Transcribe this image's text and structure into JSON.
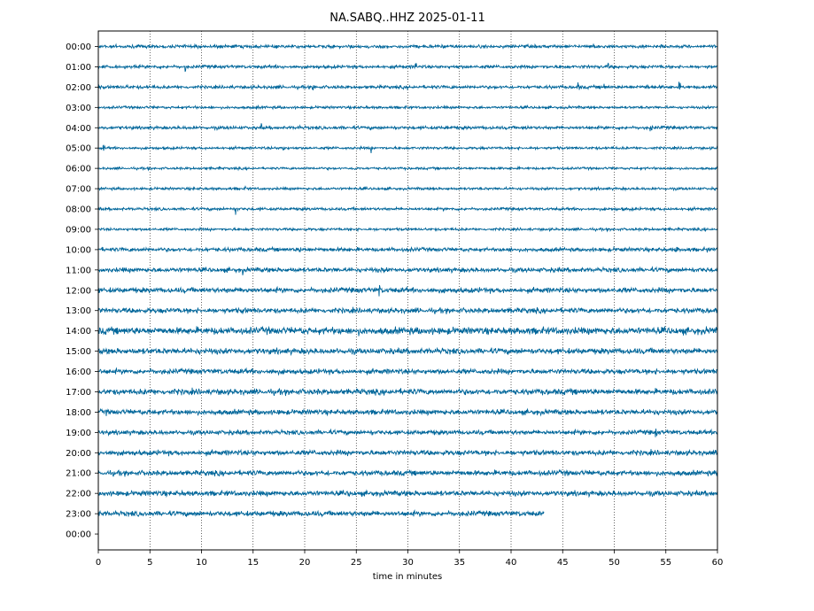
{
  "chart_data": {
    "type": "line",
    "title": "NA.SABQ..HHZ 2025-01-11",
    "xlabel": "time in minutes",
    "ylabel": "",
    "xlim": [
      0,
      60
    ],
    "x_ticks": [
      "0",
      "5",
      "10",
      "15",
      "20",
      "25",
      "30",
      "35",
      "40",
      "45",
      "50",
      "55",
      "60"
    ],
    "y_tick_labels": [
      "00:00",
      "01:00",
      "02:00",
      "03:00",
      "04:00",
      "05:00",
      "06:00",
      "07:00",
      "08:00",
      "09:00",
      "10:00",
      "11:00",
      "12:00",
      "13:00",
      "14:00",
      "15:00",
      "16:00",
      "17:00",
      "18:00",
      "19:00",
      "20:00",
      "21:00",
      "22:00",
      "23:00",
      "00:00"
    ],
    "trace_color": "#00669a",
    "grid": "vertical dotted at each x tick",
    "series": [
      {
        "hour": "00:00",
        "noise_level": 0.25,
        "end_minute": 60,
        "events": [
          [
            0.5,
            0.6
          ],
          [
            3.2,
            0.4
          ],
          [
            13,
            0.5
          ],
          [
            20.5,
            0.35
          ],
          [
            48,
            1.2
          ],
          [
            54.5,
            0.8
          ],
          [
            59.8,
            0.4
          ]
        ]
      },
      {
        "hour": "01:00",
        "noise_level": 0.25,
        "end_minute": 60,
        "events": [
          [
            5.5,
            0.5
          ],
          [
            8.4,
            1.0
          ],
          [
            30.7,
            1.3
          ],
          [
            34.7,
            0.5
          ],
          [
            49.4,
            0.7
          ],
          [
            54.5,
            0.5
          ]
        ]
      },
      {
        "hour": "02:00",
        "noise_level": 0.25,
        "end_minute": 60,
        "events": [
          [
            2.7,
            0.8
          ],
          [
            8.8,
            0.7
          ],
          [
            12.8,
            0.4
          ],
          [
            20.8,
            1.4
          ],
          [
            46.5,
            1.0
          ],
          [
            49,
            1.1
          ],
          [
            53.2,
            1.0
          ],
          [
            56.3,
            1.1
          ]
        ]
      },
      {
        "hour": "03:00",
        "noise_level": 0.2,
        "end_minute": 60,
        "events": [
          [
            15.3,
            0.5
          ],
          [
            26,
            0.4
          ]
        ]
      },
      {
        "hour": "04:00",
        "noise_level": 0.25,
        "end_minute": 60,
        "events": [
          [
            0.5,
            0.5
          ],
          [
            15.8,
            0.7
          ],
          [
            19.4,
            0.8
          ],
          [
            25,
            0.4
          ],
          [
            33.8,
            0.7
          ],
          [
            41.5,
            1.0
          ],
          [
            53.5,
            1.1
          ]
        ]
      },
      {
        "hour": "05:00",
        "noise_level": 0.2,
        "end_minute": 60,
        "events": [
          [
            0.5,
            0.8
          ],
          [
            17.9,
            1.2
          ],
          [
            26.4,
            0.8
          ],
          [
            37,
            0.4
          ]
        ]
      },
      {
        "hour": "06:00",
        "noise_level": 0.18,
        "end_minute": 60,
        "events": [
          [
            11.6,
            0.6
          ],
          [
            24.8,
            1.3
          ]
        ]
      },
      {
        "hour": "07:00",
        "noise_level": 0.2,
        "end_minute": 60,
        "events": [
          [
            14.3,
            0.8
          ],
          [
            55,
            0.3
          ]
        ]
      },
      {
        "hour": "08:00",
        "noise_level": 0.22,
        "end_minute": 60,
        "events": [
          [
            13.3,
            1.4
          ]
        ]
      },
      {
        "hour": "09:00",
        "noise_level": 0.2,
        "end_minute": 60,
        "events": [
          [
            13,
            0.3
          ]
        ]
      },
      {
        "hour": "10:00",
        "noise_level": 0.3,
        "end_minute": 60,
        "events": [
          [
            19.5,
            1.0
          ],
          [
            23.8,
            0.8
          ],
          [
            40,
            0.5
          ],
          [
            56,
            1.1
          ],
          [
            59,
            0.6
          ]
        ]
      },
      {
        "hour": "11:00",
        "noise_level": 0.35,
        "end_minute": 60,
        "events": [
          [
            9,
            0.6
          ],
          [
            14,
            0.8
          ],
          [
            27.5,
            1.3
          ],
          [
            44.5,
            0.7
          ],
          [
            47,
            0.8
          ],
          [
            59,
            0.8
          ]
        ]
      },
      {
        "hour": "12:00",
        "noise_level": 0.4,
        "end_minute": 60,
        "events": [
          [
            6.3,
            0.7
          ],
          [
            14,
            1.2
          ],
          [
            27.2,
            1.5
          ],
          [
            33.5,
            0.6
          ],
          [
            52.5,
            0.6
          ]
        ]
      },
      {
        "hour": "13:00",
        "noise_level": 0.4,
        "end_minute": 60,
        "events": [
          [
            14,
            1.0
          ],
          [
            40,
            1.0
          ],
          [
            42.5,
            0.6
          ],
          [
            56.8,
            0.5
          ]
        ]
      },
      {
        "hour": "14:00",
        "noise_level": 0.55,
        "end_minute": 60,
        "events": [
          [
            25.2,
            0.8
          ],
          [
            31,
            0.5
          ],
          [
            55,
            0.6
          ]
        ]
      },
      {
        "hour": "15:00",
        "noise_level": 0.45,
        "end_minute": 60,
        "events": [
          [
            12.5,
            0.7
          ],
          [
            35,
            0.6
          ],
          [
            59,
            0.5
          ]
        ]
      },
      {
        "hour": "16:00",
        "noise_level": 0.4,
        "end_minute": 60,
        "events": [
          [
            4,
            0.7
          ],
          [
            13.5,
            0.6
          ],
          [
            20,
            0.5
          ]
        ]
      },
      {
        "hour": "17:00",
        "noise_level": 0.45,
        "end_minute": 60,
        "events": [
          [
            5.5,
            0.7
          ],
          [
            24.5,
            0.6
          ],
          [
            59.5,
            0.8
          ]
        ]
      },
      {
        "hour": "18:00",
        "noise_level": 0.4,
        "end_minute": 60,
        "events": [
          [
            0.8,
            0.8
          ],
          [
            5,
            0.8
          ],
          [
            53.8,
            1.0
          ]
        ]
      },
      {
        "hour": "19:00",
        "noise_level": 0.35,
        "end_minute": 60,
        "events": [
          [
            6.1,
            0.7
          ],
          [
            23.5,
            0.6
          ],
          [
            26.5,
            0.6
          ],
          [
            54,
            1.2
          ]
        ]
      },
      {
        "hour": "20:00",
        "noise_level": 0.4,
        "end_minute": 60,
        "events": [
          [
            6,
            0.7
          ],
          [
            11.5,
            0.6
          ],
          [
            21,
            0.7
          ],
          [
            30,
            0.8
          ],
          [
            51,
            0.8
          ]
        ]
      },
      {
        "hour": "21:00",
        "noise_level": 0.4,
        "end_minute": 60,
        "events": [
          [
            1.5,
            0.8
          ],
          [
            11.8,
            0.7
          ],
          [
            24,
            0.7
          ],
          [
            45.5,
            0.6
          ],
          [
            49.5,
            0.8
          ]
        ]
      },
      {
        "hour": "22:00",
        "noise_level": 0.4,
        "end_minute": 60,
        "events": [
          [
            0.8,
            0.5
          ],
          [
            4.5,
            0.8
          ],
          [
            6.2,
            1.0
          ],
          [
            24.3,
            0.8
          ],
          [
            55,
            0.5
          ]
        ]
      },
      {
        "hour": "23:00",
        "noise_level": 0.4,
        "end_minute": 43.2,
        "events": [
          [
            0.3,
            0.6
          ],
          [
            15.5,
            0.7
          ],
          [
            17.7,
            0.8
          ],
          [
            26.3,
            0.9
          ],
          [
            39.5,
            0.6
          ]
        ]
      }
    ]
  }
}
